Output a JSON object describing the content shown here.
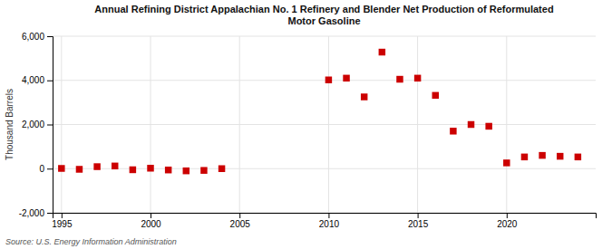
{
  "chart_data": {
    "type": "scatter",
    "title": "Annual Refining District Appalachian No. 1 Refinery and Blender Net Production of Reformulated\nMotor Gasoline",
    "ylabel": "Thousand Barrels",
    "annotations": [
      "Source: U.S. Energy Information Administration"
    ],
    "x": [
      1995,
      1996,
      1997,
      1998,
      1999,
      2000,
      2001,
      2002,
      2003,
      2004,
      2010,
      2011,
      2012,
      2013,
      2014,
      2015,
      2016,
      2017,
      2018,
      2019,
      2020,
      2021,
      2022,
      2023,
      2024
    ],
    "values": [
      10,
      -30,
      90,
      120,
      -50,
      20,
      -60,
      -100,
      -80,
      0,
      4020,
      4100,
      3250,
      5280,
      4050,
      4100,
      3320,
      1700,
      2000,
      1920,
      260,
      530,
      600,
      560,
      530
    ],
    "color": "#cc0000",
    "marker": "square",
    "xlim": [
      1994.5,
      2025
    ],
    "xticks": [
      1995,
      2000,
      2005,
      2010,
      2015,
      2020
    ],
    "ylim": [
      -2000,
      6000
    ],
    "yticks": [
      {
        "value": -2000,
        "label": "-2,000"
      },
      0,
      {
        "value": 2000,
        "label": "2,000"
      },
      {
        "value": 4000,
        "label": "4,000"
      },
      {
        "value": 6000,
        "label": "6,000"
      }
    ],
    "grid": true
  }
}
